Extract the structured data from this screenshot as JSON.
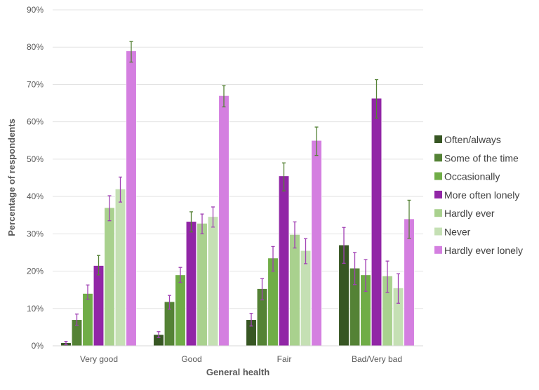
{
  "chart_data": {
    "type": "bar",
    "title": "",
    "xlabel": "General health",
    "ylabel": "Percentage of respondents",
    "ylim": [
      0,
      90
    ],
    "yticks": [
      0,
      10,
      20,
      30,
      40,
      50,
      60,
      70,
      80,
      90
    ],
    "ytick_labels": [
      "0%",
      "10%",
      "20%",
      "30%",
      "40%",
      "50%",
      "60%",
      "70%",
      "80%",
      "90%"
    ],
    "grid": true,
    "legend_position": "right",
    "categories": [
      "Very good",
      "Good",
      "Fair",
      "Bad/Very bad"
    ],
    "series": [
      {
        "name": "Often/always",
        "color": "#375623",
        "error_color": "#a040b4",
        "values": [
          0.8,
          3.0,
          7.0,
          27.0
        ],
        "err_low": [
          0.3,
          2.2,
          5.3,
          22.1
        ],
        "err_high": [
          1.2,
          3.8,
          8.7,
          31.7
        ]
      },
      {
        "name": "Some of the time",
        "color": "#548235",
        "error_color": "#a040b4",
        "values": [
          7.0,
          11.8,
          15.3,
          20.8
        ],
        "err_low": [
          5.5,
          9.8,
          12.3,
          16.4
        ],
        "err_high": [
          8.5,
          13.5,
          18.0,
          25.0
        ]
      },
      {
        "name": "Occasionally",
        "color": "#70ad47",
        "error_color": "#a040b4",
        "values": [
          14.0,
          19.0,
          23.5,
          19.0
        ],
        "err_low": [
          12.5,
          17.0,
          20.0,
          14.6
        ],
        "err_high": [
          16.3,
          21.0,
          26.6,
          23.1
        ]
      },
      {
        "name": "More often lonely",
        "color": "#9126a6",
        "error_color": "#548235",
        "values": [
          21.5,
          33.3,
          45.5,
          66.3
        ],
        "err_low": [
          19.0,
          30.5,
          41.5,
          61.0
        ],
        "err_high": [
          24.2,
          35.9,
          49.0,
          71.3
        ]
      },
      {
        "name": "Hardly ever",
        "color": "#a9d18e",
        "error_color": "#a040b4",
        "values": [
          37.0,
          32.8,
          29.8,
          18.7
        ],
        "err_low": [
          33.5,
          30.0,
          26.2,
          14.3
        ],
        "err_high": [
          40.2,
          35.3,
          33.2,
          22.7
        ]
      },
      {
        "name": "Never",
        "color": "#c5e0b4",
        "error_color": "#a040b4",
        "values": [
          42.0,
          34.6,
          25.5,
          15.5
        ],
        "err_low": [
          38.5,
          31.8,
          22.0,
          11.4
        ],
        "err_high": [
          45.2,
          37.2,
          28.7,
          19.3
        ]
      },
      {
        "name": "Hardly ever lonely",
        "color": "#d47fe0",
        "error_color": "#548235",
        "values": [
          79.0,
          67.0,
          55.0,
          34.0
        ],
        "err_low": [
          76.0,
          64.0,
          51.0,
          28.8
        ],
        "err_high": [
          81.5,
          69.7,
          58.6,
          39.0
        ]
      }
    ]
  }
}
